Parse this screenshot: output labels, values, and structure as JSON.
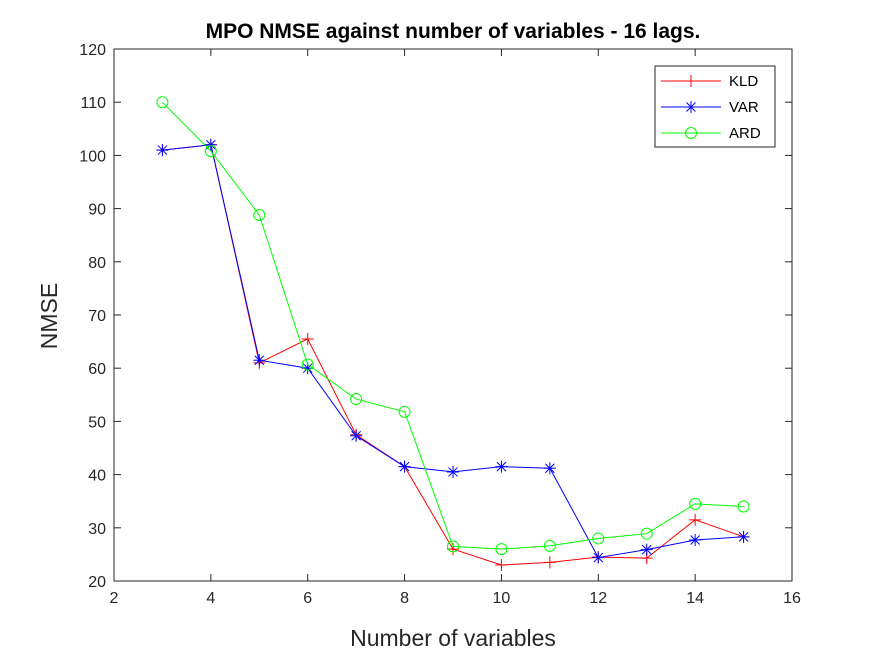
{
  "chart_data": {
    "type": "line",
    "title": "MPO NMSE against number of variables - 16 lags.",
    "xlabel": "Number of variables",
    "ylabel": "NMSE",
    "xlim": [
      2,
      16
    ],
    "ylim": [
      20,
      120
    ],
    "xticks": [
      2,
      4,
      6,
      8,
      10,
      12,
      14,
      16
    ],
    "yticks": [
      20,
      30,
      40,
      50,
      60,
      70,
      80,
      90,
      100,
      110,
      120
    ],
    "grid": false,
    "legend_position": "top-right",
    "x": [
      3,
      4,
      5,
      6,
      7,
      8,
      9,
      10,
      11,
      12,
      13,
      14,
      15
    ],
    "series": [
      {
        "name": "KLD",
        "color": "#ff0000",
        "marker": "plus",
        "values": [
          101,
          102,
          61,
          65.5,
          47.5,
          41.5,
          26,
          23,
          23.5,
          24.5,
          24.3,
          31.5,
          28.3
        ]
      },
      {
        "name": "VAR",
        "color": "#0000ff",
        "marker": "asterisk",
        "values": [
          101,
          102,
          61.5,
          60,
          47.3,
          41.5,
          40.5,
          41.5,
          41.2,
          24.4,
          25.9,
          27.7,
          28.3
        ]
      },
      {
        "name": "ARD",
        "color": "#00ff00",
        "marker": "circle",
        "values": [
          110,
          100.8,
          88.8,
          60.7,
          54.2,
          51.8,
          26.5,
          26,
          26.6,
          28,
          28.9,
          34.5,
          34
        ]
      }
    ]
  }
}
